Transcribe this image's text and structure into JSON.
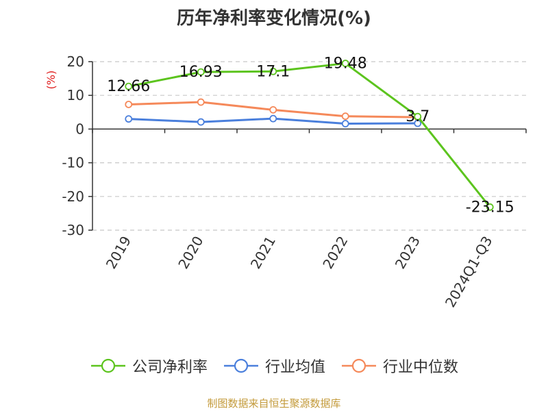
{
  "chart_data": {
    "type": "line",
    "title": "历年净利率变化情况(%)",
    "ylabel": "(%)",
    "xlabel": "",
    "categories": [
      "2019",
      "2020",
      "2021",
      "2022",
      "2023",
      "2024Q1-Q3"
    ],
    "ylim": [
      -30,
      20
    ],
    "yticks": [
      20,
      10,
      0,
      -10,
      -20,
      -30
    ],
    "grid": true,
    "legend_position": "bottom",
    "series": [
      {
        "name": "公司净利率",
        "color": "#5cc41e",
        "values": [
          12.66,
          16.93,
          17.1,
          19.48,
          3.7,
          -23.15
        ],
        "labels": [
          "12.66",
          "16.93",
          "17.1",
          "19.48",
          "3.7",
          "-23.15"
        ]
      },
      {
        "name": "行业均值",
        "color": "#4a7fdc",
        "values": [
          3.0,
          2.1,
          3.1,
          1.6,
          1.7,
          null
        ]
      },
      {
        "name": "行业中位数",
        "color": "#f5895a",
        "values": [
          7.3,
          8.0,
          5.7,
          3.8,
          3.5,
          null
        ]
      }
    ]
  },
  "source": "制图数据来自恒生聚源数据库"
}
